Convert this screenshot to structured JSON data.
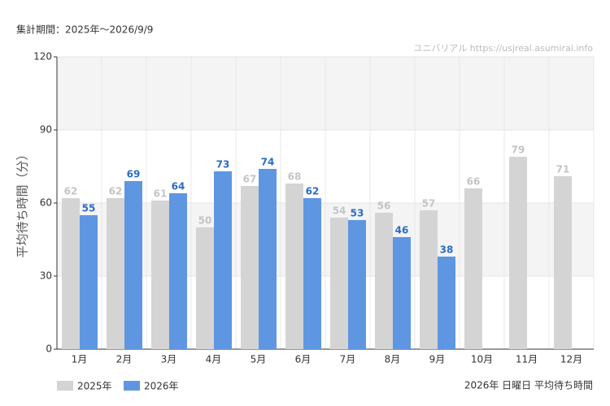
{
  "chart_data": {
    "type": "bar",
    "subtitle": "集計期間：2025年～2026/9/9",
    "source": "ユニバリアル  https://usjreal.asumirai.info",
    "ylabel": "平均待ち時間（分）",
    "caption": "2026年 日曜日 平均待ち時間",
    "categories": [
      "1月",
      "2月",
      "3月",
      "4月",
      "5月",
      "6月",
      "7月",
      "8月",
      "9月",
      "10月",
      "11月",
      "12月"
    ],
    "series": [
      {
        "name": "2025年",
        "color": "#d4d4d4",
        "label_color": "#c4c4c4",
        "values": [
          62,
          62,
          61,
          50,
          67,
          68,
          54,
          56,
          57,
          66,
          79,
          71
        ]
      },
      {
        "name": "2026年",
        "color": "#5f96e2",
        "label_color": "#2b6cc4",
        "values": [
          55,
          69,
          64,
          73,
          74,
          62,
          53,
          46,
          38,
          null,
          null,
          null
        ]
      }
    ],
    "ylim": [
      0,
      120
    ],
    "yticks": [
      0,
      30,
      60,
      90,
      120
    ],
    "grid": true,
    "legend": "bottom-left"
  }
}
